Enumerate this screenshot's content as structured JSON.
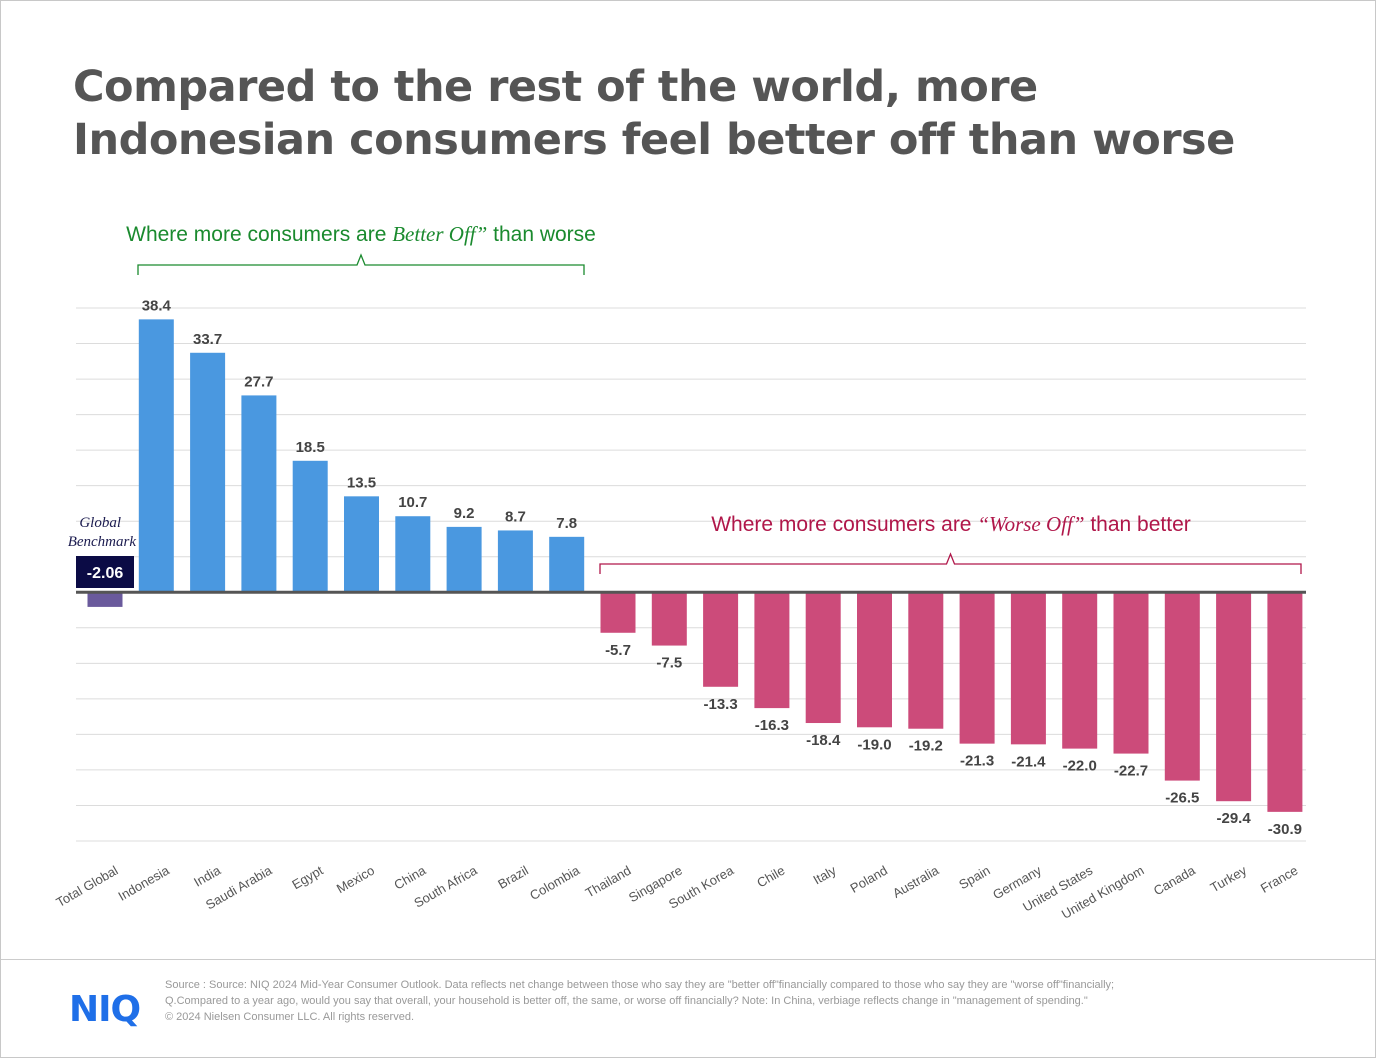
{
  "title": "Compared to the rest of the world, more Indonesian consumers feel better off than worse",
  "annotations": {
    "better": {
      "pre": "Where more consumers are ",
      "em": "Better Off”",
      "post": " than worse",
      "color": "#1a8a2e"
    },
    "worse": {
      "pre": "Where more consumers are ",
      "em": "“Worse Off”",
      "post": " than better",
      "color": "#b0174a"
    },
    "benchmark_label_1": "Global",
    "benchmark_label_2": "Benchmark",
    "benchmark_value": "-2.06"
  },
  "chart_data": {
    "type": "bar",
    "categories": [
      "Total Global",
      "Indonesia",
      "India",
      "Saudi Arabia",
      "Egypt",
      "Mexico",
      "China",
      "South Africa",
      "Brazil",
      "Colombia",
      "Thailand",
      "Singapore",
      "South Korea",
      "Chile",
      "Italy",
      "Poland",
      "Australia",
      "Spain",
      "Germany",
      "United States",
      "United Kingdom",
      "Canada",
      "Turkey",
      "France"
    ],
    "values": [
      -2.06,
      38.4,
      33.7,
      27.7,
      18.5,
      13.5,
      10.7,
      9.2,
      8.7,
      7.8,
      -5.7,
      -7.5,
      -13.3,
      -16.3,
      -18.4,
      -19.0,
      -19.2,
      -21.3,
      -21.4,
      -22.0,
      -22.7,
      -26.5,
      -29.4,
      -30.9
    ],
    "data_labels": [
      "",
      "38.4",
      "33.7",
      "27.7",
      "18.5",
      "13.5",
      "10.7",
      "9.2",
      "8.7",
      "7.8",
      "-5.7",
      "-7.5",
      "-13.3",
      "-16.3",
      "-18.4",
      "-19.0",
      "-19.2",
      "-21.3",
      "-21.4",
      "-22.0",
      "-22.7",
      "-26.5",
      "-29.4",
      "-30.9"
    ],
    "ylim": [
      -35,
      40
    ],
    "grid": true,
    "colors": {
      "benchmark": "#6a5a9c",
      "positive": "#4a98e0",
      "negative": "#cc4b7a"
    }
  },
  "footer": {
    "logo": "NIQ",
    "source_1": "Source : Source: NIQ 2024 Mid-Year Consumer Outlook. Data reflects net change between those who say they are \"better off\"financially compared to those who say they are \"worse off\"financially;",
    "source_2": "Q.Compared to a year ago, would you say that overall, your household is better off, the same, or worse off financially? Note: In China, verbiage reflects change in \"management of spending.\"",
    "source_3": "© 2024 Nielsen Consumer LLC. All rights reserved."
  }
}
